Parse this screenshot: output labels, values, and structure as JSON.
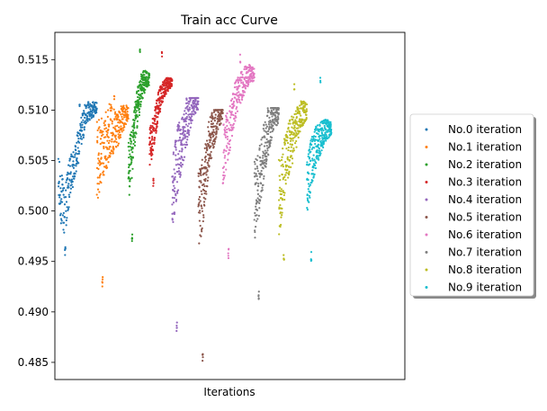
{
  "chart_data": {
    "type": "scatter",
    "title": "Train acc Curve",
    "xlabel": "Iterations",
    "ylabel": "",
    "ylim": [
      0.4833,
      0.5177
    ],
    "xlim": [
      0,
      1000
    ],
    "x_ticks_shown": false,
    "y_ticks": [
      0.485,
      0.49,
      0.495,
      0.5,
      0.505,
      0.51,
      0.515
    ],
    "y_tick_labels": [
      "0.485",
      "0.490",
      "0.495",
      "0.500",
      "0.505",
      "0.510",
      "0.515"
    ],
    "grid": false,
    "legend_position": "right",
    "series": [
      {
        "name": "No.0 iteration",
        "color": "#1f77b4",
        "x_range": [
          10,
          120
        ],
        "profile": [
          [
            0,
            0.5025
          ],
          [
            0.15,
            0.5
          ],
          [
            0.3,
            0.503
          ],
          [
            0.45,
            0.505
          ],
          [
            0.6,
            0.508
          ],
          [
            0.75,
            0.51
          ],
          [
            1,
            0.5102
          ]
        ],
        "min": 0.4955,
        "max": 0.5108,
        "spread": 0.003
      },
      {
        "name": "No.1 iteration",
        "color": "#ff7f0e",
        "x_range": [
          120,
          210
        ],
        "profile": [
          [
            0,
            0.505
          ],
          [
            0.2,
            0.506
          ],
          [
            0.4,
            0.508
          ],
          [
            0.6,
            0.508
          ],
          [
            0.8,
            0.509
          ],
          [
            1,
            0.5098
          ]
        ],
        "min": 0.4925,
        "max": 0.5115,
        "spread": 0.004
      },
      {
        "name": "No.2 iteration",
        "color": "#2ca02c",
        "x_range": [
          210,
          270
        ],
        "profile": [
          [
            0,
            0.504
          ],
          [
            0.2,
            0.506
          ],
          [
            0.4,
            0.51
          ],
          [
            0.6,
            0.512
          ],
          [
            0.8,
            0.513
          ],
          [
            1,
            0.513
          ]
        ],
        "min": 0.4968,
        "max": 0.5161,
        "spread": 0.003
      },
      {
        "name": "No.3 iteration",
        "color": "#d62728",
        "x_range": [
          270,
          335
        ],
        "profile": [
          [
            0,
            0.506
          ],
          [
            0.2,
            0.508
          ],
          [
            0.4,
            0.5105
          ],
          [
            0.6,
            0.512
          ],
          [
            0.8,
            0.5125
          ],
          [
            1,
            0.5128
          ]
        ],
        "min": 0.5023,
        "max": 0.5158,
        "spread": 0.002
      },
      {
        "name": "No.4 iteration",
        "color": "#9467bd",
        "x_range": [
          335,
          410
        ],
        "profile": [
          [
            0,
            0.502
          ],
          [
            0.2,
            0.505
          ],
          [
            0.4,
            0.507
          ],
          [
            0.6,
            0.509
          ],
          [
            0.8,
            0.5108
          ],
          [
            1,
            0.5108
          ]
        ],
        "min": 0.488,
        "max": 0.5112,
        "spread": 0.004
      },
      {
        "name": "No.5 iteration",
        "color": "#8c564b",
        "x_range": [
          410,
          480
        ],
        "profile": [
          [
            0,
            0.5
          ],
          [
            0.2,
            0.502
          ],
          [
            0.4,
            0.506
          ],
          [
            0.6,
            0.508
          ],
          [
            0.8,
            0.5095
          ],
          [
            1,
            0.5098
          ]
        ],
        "min": 0.485,
        "max": 0.51,
        "spread": 0.004
      },
      {
        "name": "No.6 iteration",
        "color": "#e377c2",
        "x_range": [
          480,
          570
        ],
        "profile": [
          [
            0,
            0.5055
          ],
          [
            0.2,
            0.508
          ],
          [
            0.4,
            0.511
          ],
          [
            0.6,
            0.5125
          ],
          [
            0.8,
            0.5135
          ],
          [
            1,
            0.5135
          ]
        ],
        "min": 0.4953,
        "max": 0.5155,
        "spread": 0.003
      },
      {
        "name": "No.7 iteration",
        "color": "#7f7f7f",
        "x_range": [
          570,
          640
        ],
        "profile": [
          [
            0,
            0.501
          ],
          [
            0.2,
            0.503
          ],
          [
            0.4,
            0.506
          ],
          [
            0.6,
            0.508
          ],
          [
            0.8,
            0.5095
          ],
          [
            1,
            0.5096
          ]
        ],
        "min": 0.4912,
        "max": 0.5102,
        "spread": 0.004
      },
      {
        "name": "No.8 iteration",
        "color": "#bcbd22",
        "x_range": [
          640,
          720
        ],
        "profile": [
          [
            0,
            0.5015
          ],
          [
            0.2,
            0.504
          ],
          [
            0.4,
            0.5065
          ],
          [
            0.6,
            0.508
          ],
          [
            0.8,
            0.5095
          ],
          [
            1,
            0.51
          ]
        ],
        "min": 0.4947,
        "max": 0.5128,
        "spread": 0.004
      },
      {
        "name": "No.9 iteration",
        "color": "#17becf",
        "x_range": [
          720,
          790
        ],
        "profile": [
          [
            0,
            0.5025
          ],
          [
            0.2,
            0.505
          ],
          [
            0.4,
            0.5065
          ],
          [
            0.6,
            0.5075
          ],
          [
            0.8,
            0.508
          ],
          [
            1,
            0.5082
          ]
        ],
        "min": 0.495,
        "max": 0.5133,
        "spread": 0.003
      }
    ]
  }
}
